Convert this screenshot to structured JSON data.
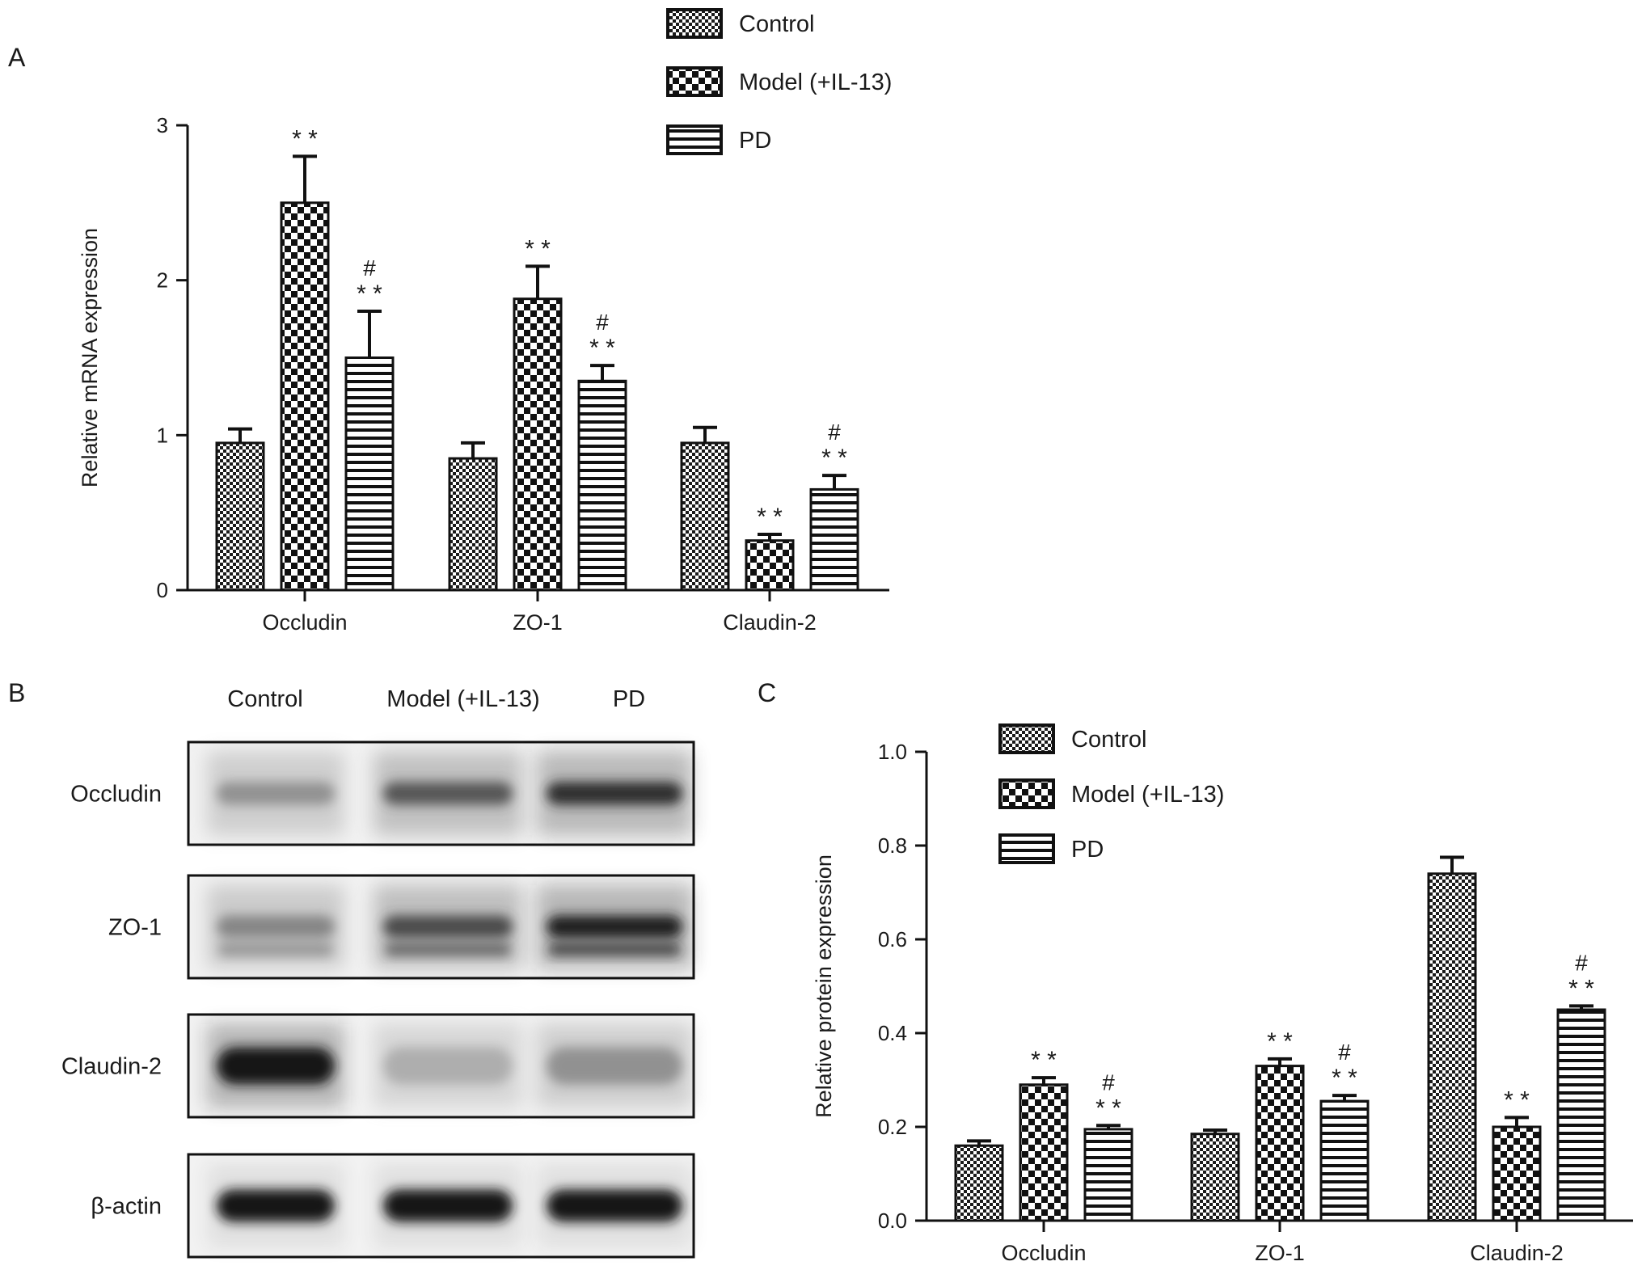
{
  "panel_labels": {
    "a": "A",
    "b": "B",
    "c": "C"
  },
  "groups": [
    {
      "name": "Control",
      "pattern": "checker-small"
    },
    {
      "name": "Model (+IL-13)",
      "pattern": "checker-large"
    },
    {
      "name": "PD",
      "pattern": "horizontal-stripes"
    }
  ],
  "significance_marks": {
    "vs_control": "* *",
    "vs_model": "#"
  },
  "chart_data": [
    {
      "panel": "A",
      "type": "bar",
      "title": "",
      "xlabel": "",
      "ylabel": "Relative mRNA expression",
      "ylim": [
        0,
        3
      ],
      "yticks": [
        0,
        1,
        2,
        3
      ],
      "ytick_labels": [
        "0",
        "1",
        "2",
        "3"
      ],
      "categories": [
        "Occludin",
        "ZO-1",
        "Claudin-2"
      ],
      "series": [
        {
          "name": "Control",
          "values": [
            0.95,
            0.85,
            0.95
          ],
          "errors": [
            0.09,
            0.1,
            0.1
          ],
          "marks": [
            "",
            "",
            ""
          ]
        },
        {
          "name": "Model (+IL-13)",
          "values": [
            2.5,
            1.88,
            0.32
          ],
          "errors": [
            0.3,
            0.21,
            0.04
          ],
          "marks": [
            "* *",
            "* *",
            "* *"
          ]
        },
        {
          "name": "PD",
          "values": [
            1.5,
            1.35,
            0.65
          ],
          "errors": [
            0.3,
            0.1,
            0.09
          ],
          "marks": [
            "* *|#",
            "* *|#",
            "* *|#"
          ]
        }
      ],
      "legend_position": "top-right",
      "grid": false
    },
    {
      "panel": "C",
      "type": "bar",
      "title": "",
      "xlabel": "",
      "ylabel": "Relative protein expression",
      "ylim": [
        0,
        1.0
      ],
      "yticks": [
        0.0,
        0.2,
        0.4,
        0.6,
        0.8,
        1.0
      ],
      "ytick_labels": [
        "0.0",
        "0.2",
        "0.4",
        "0.6",
        "0.8",
        "1.0"
      ],
      "categories": [
        "Occludin",
        "ZO-1",
        "Claudin-2"
      ],
      "series": [
        {
          "name": "Control",
          "values": [
            0.16,
            0.185,
            0.74
          ],
          "errors": [
            0.01,
            0.008,
            0.035
          ],
          "marks": [
            "",
            "",
            ""
          ]
        },
        {
          "name": "Model (+IL-13)",
          "values": [
            0.29,
            0.33,
            0.2
          ],
          "errors": [
            0.015,
            0.015,
            0.02
          ],
          "marks": [
            "* *",
            "* *",
            "* *"
          ]
        },
        {
          "name": "PD",
          "values": [
            0.195,
            0.255,
            0.45
          ],
          "errors": [
            0.008,
            0.012,
            0.008
          ],
          "marks": [
            "* *|#",
            "* *|#",
            "* *|#"
          ]
        }
      ],
      "legend_position": "top-left",
      "grid": false
    }
  ],
  "western_blot": {
    "panel": "B",
    "lane_labels": [
      "Control",
      "Model (+IL-13)",
      "PD"
    ],
    "rows": [
      {
        "label": "Occludin",
        "intensity": [
          0.45,
          0.7,
          0.85
        ]
      },
      {
        "label": "ZO-1",
        "intensity": [
          0.5,
          0.75,
          0.9
        ]
      },
      {
        "label": "Claudin-2",
        "intensity": [
          0.95,
          0.3,
          0.45
        ]
      },
      {
        "label": "β-actin",
        "intensity": [
          0.95,
          0.95,
          0.95
        ]
      }
    ]
  }
}
